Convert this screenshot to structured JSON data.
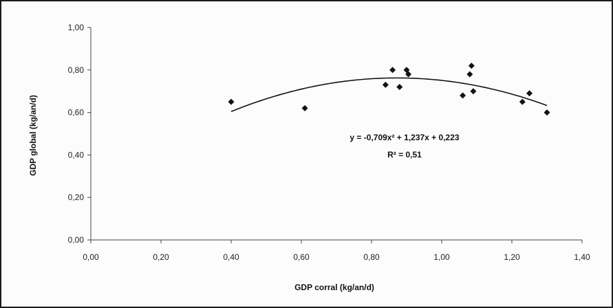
{
  "chart_data": {
    "type": "scatter",
    "xlabel": "GDP corral (kg/an/d)",
    "ylabel": "GDP global (kg/an/d)",
    "xlim": [
      0,
      1.4
    ],
    "ylim": [
      0,
      1.0
    ],
    "x_ticks": [
      "0,00",
      "0,20",
      "0,40",
      "0,60",
      "0,80",
      "1,00",
      "1,20",
      "1,40"
    ],
    "y_ticks": [
      "0,00",
      "0,20",
      "0,40",
      "0,60",
      "0,80",
      "1,00"
    ],
    "points": [
      {
        "x": 0.4,
        "y": 0.65
      },
      {
        "x": 0.61,
        "y": 0.62
      },
      {
        "x": 0.84,
        "y": 0.73
      },
      {
        "x": 0.86,
        "y": 0.8
      },
      {
        "x": 0.88,
        "y": 0.72
      },
      {
        "x": 0.9,
        "y": 0.8
      },
      {
        "x": 0.905,
        "y": 0.78
      },
      {
        "x": 1.06,
        "y": 0.68
      },
      {
        "x": 1.08,
        "y": 0.78
      },
      {
        "x": 1.085,
        "y": 0.82
      },
      {
        "x": 1.09,
        "y": 0.7
      },
      {
        "x": 1.23,
        "y": 0.65
      },
      {
        "x": 1.25,
        "y": 0.69
      },
      {
        "x": 1.3,
        "y": 0.6
      }
    ],
    "trendline": {
      "type": "polynomial",
      "coefficients": [
        -0.709,
        1.237,
        0.223
      ],
      "x_range": [
        0.4,
        1.3
      ],
      "equation": "y = -0,709x² + 1,237x + 0,223",
      "r_squared": "R² = 0,51"
    },
    "grid": false,
    "legend": "none"
  }
}
